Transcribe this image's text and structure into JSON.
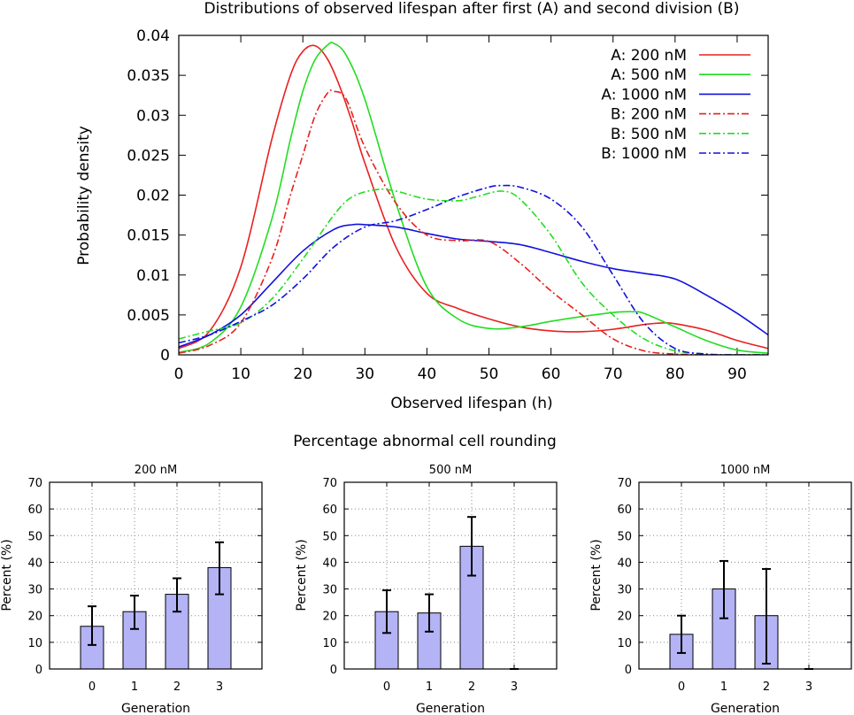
{
  "chart_data": [
    {
      "type": "line",
      "title": "Distributions of observed lifespan after first (A) and second division (B)",
      "xlabel": "Observed lifespan (h)",
      "ylabel": "Probability density",
      "xlim": [
        0,
        95
      ],
      "ylim": [
        0,
        0.04
      ],
      "xticks": [
        0,
        10,
        20,
        30,
        40,
        50,
        60,
        70,
        80,
        90
      ],
      "xtick_labels": [
        "0",
        "10",
        "20",
        "30",
        "40",
        "50",
        "60",
        "70",
        "80",
        "90"
      ],
      "yticks": [
        0,
        0.005,
        0.01,
        0.015,
        0.02,
        0.025,
        0.03,
        0.035,
        0.04
      ],
      "ytick_labels": [
        "0",
        "0.005",
        "0.01",
        "0.015",
        "0.02",
        "0.025",
        "0.03",
        "0.035",
        "0.04"
      ],
      "legend_position": "top-right",
      "series": [
        {
          "name": "A:   200 nM",
          "color": "#e8201e",
          "dash": "solid",
          "x": [
            0,
            5,
            10,
            15,
            18,
            20,
            22,
            24,
            26,
            28,
            30,
            35,
            40,
            45,
            50,
            55,
            60,
            65,
            70,
            75,
            78,
            80,
            85,
            90,
            95
          ],
          "y": [
            0.0008,
            0.003,
            0.011,
            0.027,
            0.035,
            0.038,
            0.0387,
            0.037,
            0.0335,
            0.029,
            0.024,
            0.0135,
            0.0077,
            0.0058,
            0.0045,
            0.0035,
            0.003,
            0.0029,
            0.0032,
            0.0038,
            0.004,
            0.0039,
            0.0031,
            0.0018,
            0.0008
          ]
        },
        {
          "name": "A:   500 nM",
          "color": "#22dd22",
          "dash": "solid",
          "x": [
            0,
            5,
            10,
            15,
            18,
            20,
            22,
            24,
            25,
            27,
            30,
            35,
            40,
            45,
            50,
            55,
            60,
            65,
            70,
            73,
            75,
            80,
            85,
            90,
            95
          ],
          "y": [
            0.0003,
            0.0015,
            0.006,
            0.017,
            0.027,
            0.033,
            0.037,
            0.0388,
            0.039,
            0.0375,
            0.032,
            0.019,
            0.0085,
            0.0045,
            0.0033,
            0.0035,
            0.0042,
            0.0048,
            0.0053,
            0.0054,
            0.0052,
            0.0035,
            0.0018,
            0.0006,
            0.0002
          ]
        },
        {
          "name": "A: 1000 nM",
          "color": "#1111dd",
          "dash": "solid",
          "x": [
            0,
            5,
            10,
            15,
            20,
            25,
            28,
            30,
            35,
            40,
            45,
            50,
            55,
            60,
            65,
            70,
            75,
            80,
            85,
            90,
            95
          ],
          "y": [
            0.001,
            0.0025,
            0.005,
            0.009,
            0.013,
            0.0157,
            0.0163,
            0.0163,
            0.016,
            0.0152,
            0.0145,
            0.0142,
            0.0138,
            0.0128,
            0.0117,
            0.0108,
            0.0102,
            0.0095,
            0.0075,
            0.0052,
            0.0025
          ]
        },
        {
          "name": "B:   200 nM",
          "color": "#e8201e",
          "dash": "dashdot",
          "x": [
            0,
            5,
            10,
            15,
            18,
            20,
            22,
            24,
            25,
            27,
            30,
            35,
            40,
            45,
            50,
            55,
            60,
            65,
            70,
            75,
            80,
            85,
            90,
            95
          ],
          "y": [
            0.0002,
            0.0012,
            0.004,
            0.012,
            0.02,
            0.025,
            0.03,
            0.0328,
            0.033,
            0.032,
            0.026,
            0.019,
            0.015,
            0.0143,
            0.0142,
            0.0115,
            0.008,
            0.005,
            0.002,
            0.0005,
            0.0001,
            0,
            0,
            0
          ]
        },
        {
          "name": "B:   500 nM",
          "color": "#22dd22",
          "dash": "dashdot",
          "x": [
            0,
            5,
            10,
            15,
            20,
            25,
            28,
            32,
            35,
            40,
            45,
            48,
            52,
            55,
            60,
            65,
            70,
            75,
            80,
            85,
            90,
            95
          ],
          "y": [
            0.002,
            0.003,
            0.004,
            0.007,
            0.012,
            0.0175,
            0.0198,
            0.0207,
            0.0205,
            0.0195,
            0.0193,
            0.0198,
            0.0205,
            0.0195,
            0.015,
            0.009,
            0.005,
            0.002,
            0.0005,
            0.0001,
            0,
            0
          ]
        },
        {
          "name": "B: 1000 nM",
          "color": "#1111dd",
          "dash": "dashdot",
          "x": [
            0,
            5,
            10,
            15,
            20,
            25,
            30,
            35,
            40,
            45,
            50,
            52,
            55,
            60,
            65,
            70,
            75,
            80,
            85,
            90,
            95
          ],
          "y": [
            0.0015,
            0.0025,
            0.0042,
            0.0062,
            0.0095,
            0.0135,
            0.016,
            0.0168,
            0.0182,
            0.0198,
            0.021,
            0.0212,
            0.021,
            0.0195,
            0.016,
            0.01,
            0.004,
            0.0008,
            0.0001,
            0,
            0
          ]
        }
      ]
    },
    {
      "type": "bar",
      "title": "200 nM",
      "xlabel": "Generation",
      "ylabel": "Percent (%)",
      "categories": [
        "0",
        "1",
        "2",
        "3"
      ],
      "values": [
        16,
        21.5,
        28,
        38
      ],
      "error_low": [
        9,
        15,
        21.5,
        28
      ],
      "error_high": [
        23.5,
        27.5,
        34,
        47.5
      ],
      "ylim": [
        0,
        70
      ],
      "yticks": [
        0,
        10,
        20,
        30,
        40,
        50,
        60,
        70
      ],
      "ytick_labels": [
        "0",
        "10",
        "20",
        "30",
        "40",
        "50",
        "60",
        "70"
      ]
    },
    {
      "type": "bar",
      "title": "500 nM",
      "xlabel": "Generation",
      "ylabel": "Percent (%)",
      "categories": [
        "0",
        "1",
        "2",
        "3"
      ],
      "values": [
        21.5,
        21,
        46,
        0
      ],
      "error_low": [
        13.5,
        14,
        35,
        0
      ],
      "error_high": [
        29.5,
        28,
        57,
        0
      ],
      "ylim": [
        0,
        70
      ],
      "yticks": [
        0,
        10,
        20,
        30,
        40,
        50,
        60,
        70
      ],
      "ytick_labels": [
        "0",
        "10",
        "20",
        "30",
        "40",
        "50",
        "60",
        "70"
      ]
    },
    {
      "type": "bar",
      "title": "1000 nM",
      "xlabel": "Generation",
      "ylabel": "Percent (%)",
      "categories": [
        "0",
        "1",
        "2",
        "3"
      ],
      "values": [
        13,
        30,
        20,
        0
      ],
      "error_low": [
        6,
        19,
        2,
        0
      ],
      "error_high": [
        20,
        40.5,
        37.5,
        0
      ],
      "ylim": [
        0,
        70
      ],
      "yticks": [
        0,
        10,
        20,
        30,
        40,
        50,
        60,
        70
      ],
      "ytick_labels": [
        "0",
        "10",
        "20",
        "30",
        "40",
        "50",
        "60",
        "70"
      ]
    }
  ],
  "bar_section_title": "Percentage abnormal cell rounding"
}
